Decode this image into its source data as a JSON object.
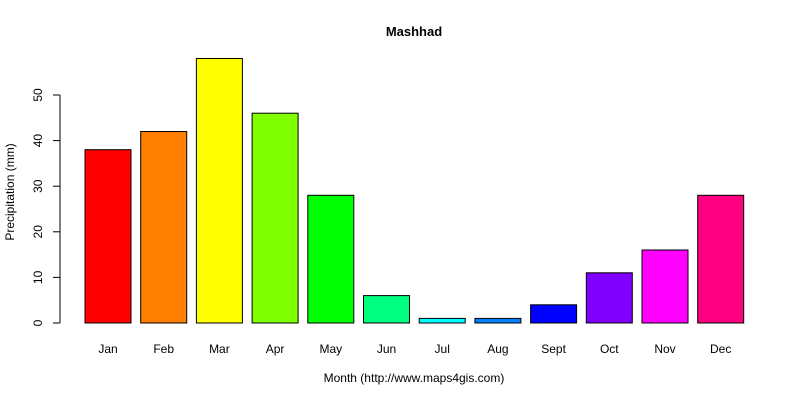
{
  "chart_data": {
    "type": "bar",
    "title": "Mashhad",
    "xlabel": "Month (http://www.maps4gis.com)",
    "ylabel": "Precipitation (mm)",
    "ylim": [
      0,
      58
    ],
    "yticks": [
      "0",
      "10",
      "20",
      "30",
      "40",
      "50"
    ],
    "ytick_values": [
      0,
      10,
      20,
      30,
      40,
      50
    ],
    "grid": false,
    "legend": "none",
    "categories": [
      "Jan",
      "Feb",
      "Mar",
      "Apr",
      "May",
      "Jun",
      "Jul",
      "Aug",
      "Sept",
      "Oct",
      "Nov",
      "Dec"
    ],
    "values": [
      38,
      42,
      58,
      46,
      28,
      6,
      1,
      1,
      4,
      11,
      16,
      28
    ],
    "colors": [
      "#FF0000",
      "#FF8000",
      "#FFFF00",
      "#80FF00",
      "#00FF00",
      "#00FF80",
      "#00FFFF",
      "#0080FF",
      "#0000FF",
      "#8000FF",
      "#FF00FF",
      "#FF0080"
    ]
  }
}
